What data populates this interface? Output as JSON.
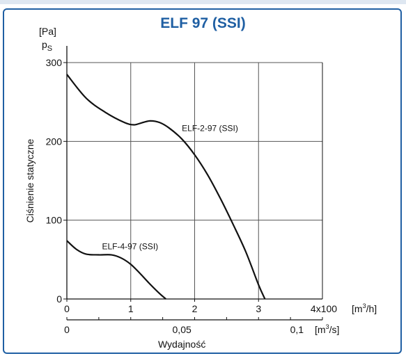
{
  "chart_data": {
    "type": "line",
    "title": "ELF 97 (SSI)",
    "ylabel": "Ciśnienie statyczne",
    "y_unit": "[Pa]",
    "y_symbol": "p",
    "y_symbol_sub": "S",
    "xlabel": "Wydajność",
    "x_unit_primary": "4x100 [m³/h]",
    "x_unit_secondary": "[m³/s]",
    "xlim": [
      0,
      4
    ],
    "ylim": [
      0,
      300
    ],
    "grid": true,
    "x_ticks": [
      "0",
      "1",
      "2",
      "3"
    ],
    "y_ticks": [
      "0",
      "100",
      "200",
      "300"
    ],
    "x2_ticks": [
      "0",
      "0,05",
      "0,1"
    ],
    "series": [
      {
        "name": "ELF-2-97 (SSI)",
        "x": [
          0,
          0.3,
          0.6,
          0.9,
          1.05,
          1.15,
          1.3,
          1.45,
          1.6,
          1.8,
          2.0,
          2.2,
          2.4,
          2.6,
          2.8,
          3.0,
          3.1
        ],
        "y": [
          285,
          255,
          237,
          224,
          221,
          223,
          226,
          224,
          217,
          203,
          183,
          158,
          128,
          95,
          60,
          18,
          0
        ]
      },
      {
        "name": "ELF-4-97 (SSI)",
        "x": [
          0,
          0.15,
          0.3,
          0.5,
          0.7,
          0.85,
          1.0,
          1.15,
          1.3,
          1.45,
          1.55
        ],
        "y": [
          74,
          63,
          57,
          56,
          56,
          52,
          44,
          32,
          19,
          7,
          0
        ]
      }
    ]
  }
}
